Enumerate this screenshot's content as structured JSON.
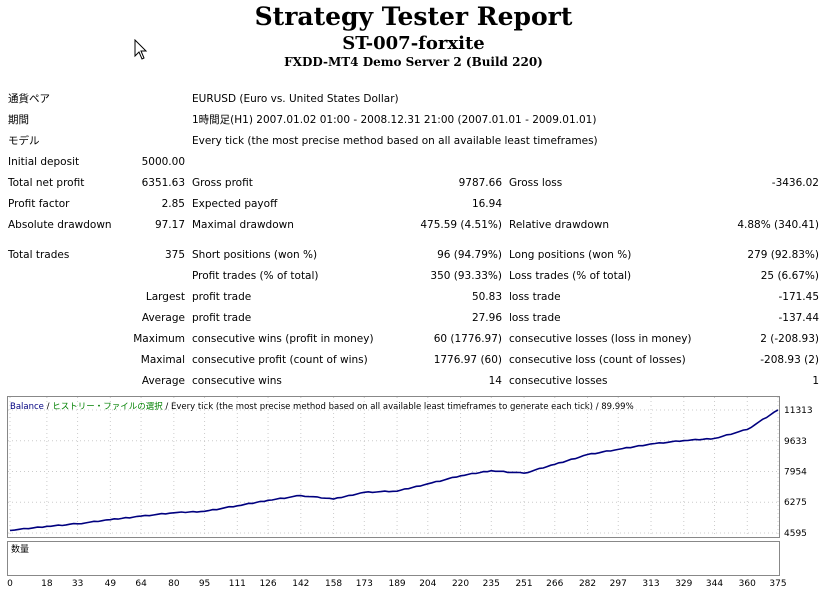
{
  "header": {
    "title": "Strategy Tester Report",
    "expert": "ST-007-forxite",
    "server": "FXDD-MT4 Demo Server 2 (Build 220)"
  },
  "info": {
    "symbol_label": "通貨ペア",
    "symbol_value": "EURUSD (Euro vs. United States Dollar)",
    "period_label": "期間",
    "period_value": "1時間足(H1) 2007.01.02 01:00 - 2008.12.31 21:00 (2007.01.01 - 2009.01.01)",
    "model_label": "モデル",
    "model_value": "Every tick (the most precise method based on all available least timeframes)"
  },
  "stats": {
    "initial_deposit_label": "Initial deposit",
    "initial_deposit": "5000.00",
    "net_profit_label": "Total net profit",
    "net_profit": "6351.63",
    "gross_profit_label": "Gross profit",
    "gross_profit": "9787.66",
    "gross_loss_label": "Gross loss",
    "gross_loss": "-3436.02",
    "profit_factor_label": "Profit factor",
    "profit_factor": "2.85",
    "expected_payoff_label": "Expected payoff",
    "expected_payoff": "16.94",
    "abs_dd_label": "Absolute drawdown",
    "abs_dd": "97.17",
    "max_dd_label": "Maximal drawdown",
    "max_dd": "475.59 (4.51%)",
    "rel_dd_label": "Relative drawdown",
    "rel_dd": "4.88% (340.41)",
    "total_trades_label": "Total trades",
    "total_trades": "375",
    "short_label": "Short positions (won %)",
    "short": "96 (94.79%)",
    "long_label": "Long positions (won %)",
    "long": "279 (92.83%)",
    "profit_trades_label": "Profit trades (% of total)",
    "profit_trades": "350 (93.33%)",
    "loss_trades_label": "Loss trades (% of total)",
    "loss_trades": "25 (6.67%)",
    "largest_label": "Largest",
    "largest_profit_label": "profit trade",
    "largest_profit": "50.83",
    "largest_loss_label": "loss trade",
    "largest_loss": "-171.45",
    "average_label": "Average",
    "avg_profit_label": "profit trade",
    "avg_profit": "27.96",
    "avg_loss_label": "loss trade",
    "avg_loss": "-137.44",
    "maximum_label": "Maximum",
    "max_wins_label": "consecutive wins (profit in money)",
    "max_wins": "60 (1776.97)",
    "max_losses_label": "consecutive losses (loss in money)",
    "max_losses": "2 (-208.93)",
    "maximal_label": "Maximal",
    "maximal_profit_label": "consecutive profit (count of wins)",
    "maximal_profit": "1776.97 (60)",
    "maximal_loss_label": "consecutive loss (count of losses)",
    "maximal_loss": "-208.93 (2)",
    "avg2_label": "Average",
    "avg_wins_label": "consecutive wins",
    "avg_wins": "14",
    "avg_losses_label": "consecutive losses",
    "avg_losses": "1"
  },
  "legend": {
    "balance": "Balance",
    "sep1": " / ",
    "history": "ヒストリー・ファイルの選択",
    "rest": " / Every tick (the most precise method based on all available least timeframes to generate each tick) / 89.99%"
  },
  "volume_label": "数量",
  "colors": {
    "balance_line": "#00007f",
    "volume_bars": "#00a000",
    "legend_green": "#008000",
    "legend_blue": "#000080"
  },
  "chart_data": {
    "type": "line",
    "series": [
      {
        "name": "Balance",
        "x": [
          0,
          18,
          33,
          49,
          64,
          80,
          95,
          111,
          126,
          142,
          158,
          173,
          189,
          204,
          220,
          235,
          251,
          266,
          282,
          297,
          313,
          329,
          344,
          360,
          375
        ],
        "values": [
          4730,
          4960,
          5100,
          5320,
          5520,
          5700,
          5780,
          6080,
          6380,
          6640,
          6450,
          6820,
          6880,
          7280,
          7720,
          8000,
          7860,
          8340,
          8880,
          9160,
          9460,
          9640,
          9760,
          10250,
          11313
        ]
      }
    ],
    "y_ticks": [
      11313,
      9633,
      7954,
      6275,
      4595
    ],
    "x_ticks": [
      0,
      18,
      33,
      49,
      64,
      80,
      95,
      111,
      126,
      142,
      158,
      173,
      189,
      204,
      220,
      235,
      251,
      266,
      282,
      297,
      313,
      329,
      344,
      360,
      375
    ],
    "ylim": [
      4595,
      11313
    ],
    "xlim": [
      0,
      375
    ]
  }
}
